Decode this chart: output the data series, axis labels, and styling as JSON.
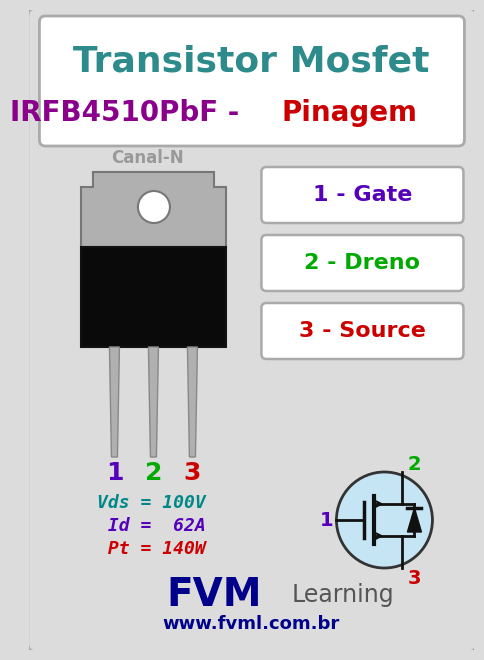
{
  "bg_color": "#dcdcdc",
  "title_line1": "Transistor Mosfet",
  "title_line1_color": "#2e8b8b",
  "title_line2_part1": "IRFB4510PbF",
  "title_line2_part1_color": "#8b008b",
  "title_line2_dash": " - ",
  "title_line2_dash_color": "#444444",
  "title_line2_part2": "Pinagem",
  "title_line2_part2_color": "#cc0000",
  "canal_n_text": "Canal-N",
  "canal_n_color": "#999999",
  "pin_labels": [
    "1 - Gate",
    "2 - Dreno",
    "3 - Source"
  ],
  "pin_full_colors": [
    "#5500bb",
    "#00aa00",
    "#cc0000"
  ],
  "pin_numbers_colors": [
    "#5500bb",
    "#00aa00",
    "#cc0000"
  ],
  "spec_lines": [
    "Vds = 100V",
    " Id =  62A",
    " Pt = 140W"
  ],
  "spec_colors": [
    "#008888",
    "#5500bb",
    "#cc0000"
  ],
  "fvm_color": "#00008b",
  "learning_color": "#555555",
  "website_color": "#00008b",
  "border_color": "#aaaaaa",
  "box_border_color": "#aaaaaa",
  "title_box_bg": "#ffffff",
  "pin_box_bg": "#ffffff"
}
